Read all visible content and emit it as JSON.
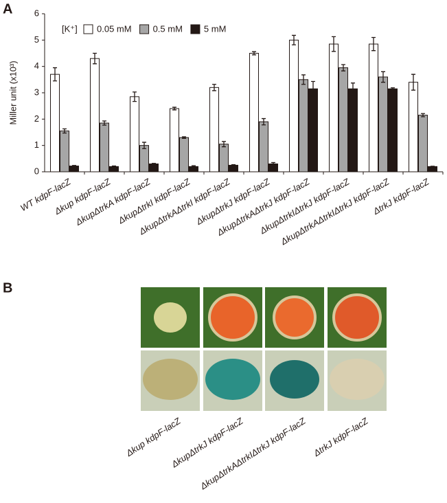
{
  "chart_data": {
    "type": "bar",
    "panel_label": "A",
    "ylabel": "Miller unit (x10³)",
    "legend_title": "[K⁺]",
    "categories": [
      "WT kdpF-lacZ",
      "Δkup kdpF-lacZ",
      "ΔkupΔtrkA kdpF-lacZ",
      "ΔkupΔtrkI kdpF-lacZ",
      "ΔkupΔtrkAΔtrkI kdpF-lacZ",
      "ΔkupΔtrkJ kdpF-lacZ",
      "ΔkupΔtrkAΔtrkJ kdpF-lacZ",
      "ΔkupΔtrkIΔtrkJ kdpF-lacZ",
      "ΔkupΔtrkAΔtrkIΔtrkJ kdpF-lacZ",
      "ΔtrkJ kdpF-lacZ"
    ],
    "series": [
      {
        "name": "0.05 mM",
        "color": "#ffffff",
        "values": [
          3.7,
          4.3,
          2.85,
          2.4,
          3.2,
          4.5,
          5.0,
          4.85,
          4.85,
          3.4
        ],
        "errors": [
          0.25,
          0.2,
          0.18,
          0.05,
          0.12,
          0.06,
          0.18,
          0.28,
          0.25,
          0.3
        ]
      },
      {
        "name": "0.5 mM",
        "color": "#a6a6a6",
        "values": [
          1.55,
          1.85,
          1.0,
          1.3,
          1.05,
          1.9,
          3.5,
          3.95,
          3.6,
          2.15
        ],
        "errors": [
          0.08,
          0.08,
          0.12,
          0.03,
          0.1,
          0.12,
          0.18,
          0.12,
          0.2,
          0.06
        ]
      },
      {
        "name": "5 mM",
        "color": "#231815",
        "values": [
          0.22,
          0.2,
          0.3,
          0.2,
          0.25,
          0.3,
          3.15,
          3.15,
          3.15,
          0.2
        ],
        "errors": [
          0.02,
          0.02,
          0.02,
          0.03,
          0.02,
          0.05,
          0.28,
          0.22,
          0.04,
          0.01
        ]
      }
    ],
    "ylim": [
      0,
      6
    ],
    "yticks": [
      0,
      1,
      2,
      3,
      4,
      5,
      6
    ],
    "grid": false
  },
  "panel_b": {
    "panel_label": "B",
    "labels": [
      "Δkup kdpF-lacZ",
      "ΔkupΔtrkJ kdpF-lacZ",
      "ΔkupΔtrkAΔtrkIΔtrkJ kdpF-lacZ",
      "ΔtrkJ kdpF-lacZ"
    ]
  }
}
